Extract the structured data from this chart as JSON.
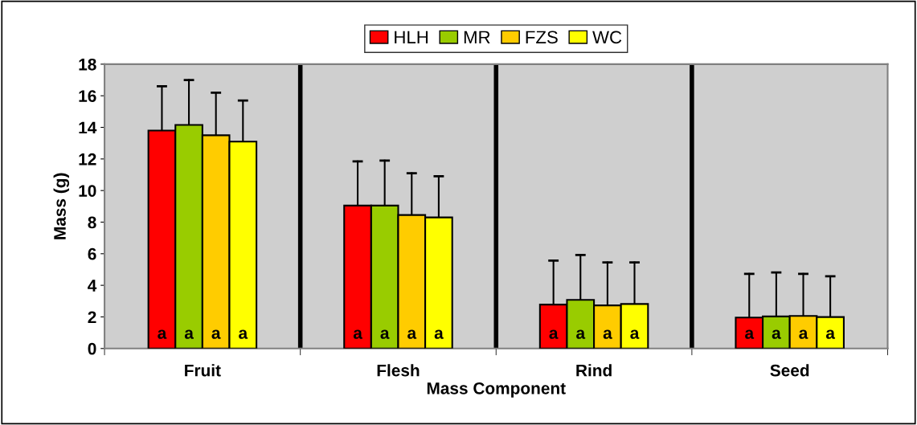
{
  "chart_data": {
    "type": "bar",
    "xlabel": "Mass Component",
    "ylabel": "Mass (g)",
    "categories": [
      "Fruit",
      "Flesh",
      "Rind",
      "Seed"
    ],
    "series": [
      {
        "name": "HLH",
        "color": "#ff0000",
        "values": [
          13.8,
          9.05,
          2.78,
          1.96
        ],
        "errors": [
          [
            13.8,
            16.6
          ],
          [
            9.05,
            11.85
          ],
          [
            2.78,
            5.57
          ],
          [
            1.96,
            4.73
          ]
        ],
        "value_labels": [
          "a",
          "a",
          "a",
          "a"
        ]
      },
      {
        "name": "MR",
        "color": "#99cc00",
        "values": [
          14.15,
          9.05,
          3.08,
          2.03
        ],
        "errors": [
          [
            14.15,
            17.0
          ],
          [
            9.05,
            11.9
          ],
          [
            3.08,
            5.92
          ],
          [
            2.03,
            4.81
          ]
        ],
        "value_labels": [
          "a",
          "a",
          "a",
          "a"
        ]
      },
      {
        "name": "FZS",
        "color": "#ffcc00",
        "values": [
          13.5,
          8.45,
          2.73,
          2.06
        ],
        "errors": [
          [
            13.5,
            16.2
          ],
          [
            8.45,
            11.1
          ],
          [
            2.73,
            5.45
          ],
          [
            2.06,
            4.73
          ]
        ],
        "value_labels": [
          "a",
          "a",
          "a",
          "a"
        ]
      },
      {
        "name": "WC",
        "color": "#ffff00",
        "values": [
          13.1,
          8.3,
          2.82,
          1.99
        ],
        "errors": [
          [
            13.1,
            15.7
          ],
          [
            8.3,
            10.9
          ],
          [
            2.82,
            5.45
          ],
          [
            1.99,
            4.57
          ]
        ],
        "value_labels": [
          "a",
          "a",
          "a",
          "a"
        ]
      }
    ],
    "ylim": [
      0,
      18
    ],
    "yticks": [
      0,
      2,
      4,
      6,
      8,
      10,
      12,
      14,
      16,
      18
    ],
    "grid": "x",
    "legend": "top"
  }
}
